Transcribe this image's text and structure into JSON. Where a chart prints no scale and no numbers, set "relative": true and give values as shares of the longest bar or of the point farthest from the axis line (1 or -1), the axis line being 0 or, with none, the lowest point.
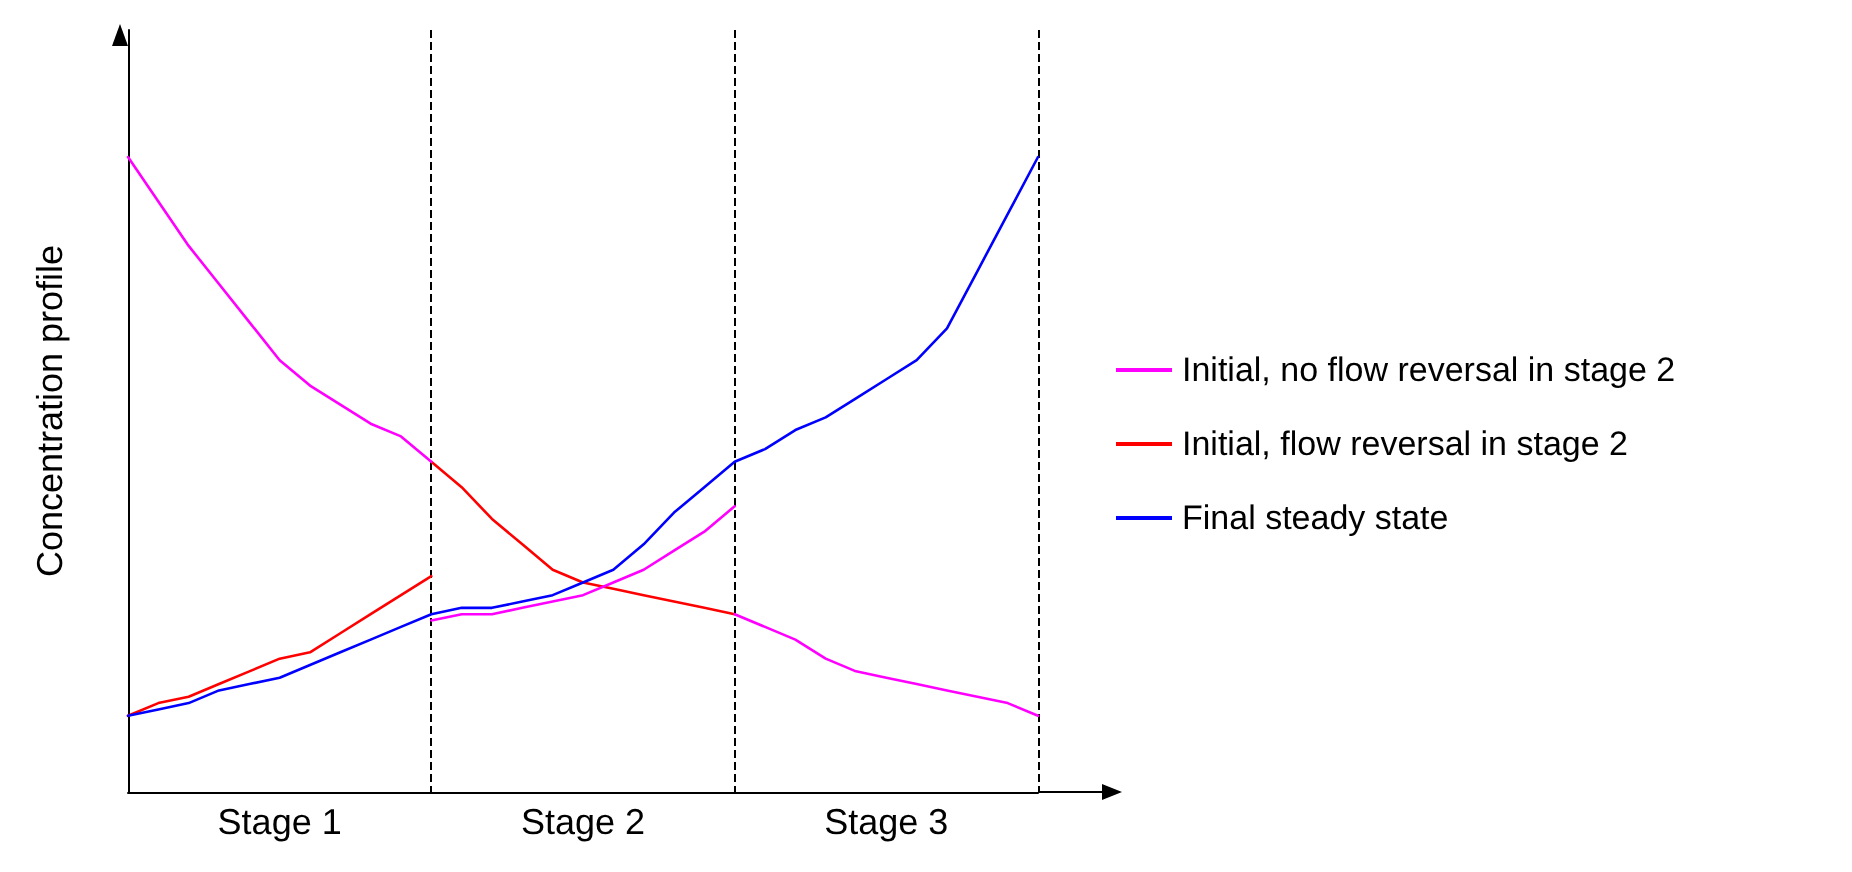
{
  "chart_data": {
    "type": "line",
    "relative": true,
    "ylabel": "Concentration profile",
    "categories": [
      null,
      null,
      null,
      null,
      null,
      "Stage 1",
      null,
      null,
      null,
      null,
      null,
      null,
      null,
      null,
      null,
      "Stage 2",
      null,
      null,
      null,
      null,
      null,
      null,
      null,
      null,
      null,
      "Stage 3",
      null,
      null,
      null,
      null,
      null
    ],
    "series": [
      {
        "name": "Initial, no flow reversal in stage 2",
        "color": "#ff00ff",
        "values": [
          1.0,
          0.93,
          0.86,
          0.8,
          0.74,
          0.68,
          0.64,
          0.61,
          0.58,
          0.56,
          0.52,
          null,
          null,
          null,
          null,
          null,
          null,
          null,
          null,
          null,
          null,
          null,
          null,
          null,
          null,
          null,
          null,
          null,
          null,
          null,
          null
        ]
      },
      {
        "color": "#ff00ff",
        "values": [
          null,
          null,
          null,
          null,
          null,
          null,
          null,
          null,
          null,
          null,
          0.27,
          0.28,
          0.28,
          0.29,
          0.3,
          0.31,
          0.33,
          0.35,
          0.38,
          0.41,
          0.45,
          null,
          null,
          null,
          null,
          null,
          null,
          null,
          null,
          null,
          null
        ]
      },
      {
        "color": "#ff00ff",
        "values": [
          null,
          null,
          null,
          null,
          null,
          null,
          null,
          null,
          null,
          null,
          null,
          null,
          null,
          null,
          null,
          null,
          null,
          null,
          null,
          null,
          0.28,
          0.26,
          0.24,
          0.21,
          0.19,
          0.18,
          0.17,
          0.16,
          0.15,
          0.14,
          0.12
        ]
      },
      {
        "name": "Initial, flow reversal in stage 2",
        "color": "#ff0000",
        "values": [
          null,
          null,
          null,
          null,
          null,
          null,
          null,
          null,
          null,
          null,
          0.52,
          0.48,
          0.43,
          0.39,
          0.35,
          0.33,
          0.32,
          0.31,
          0.3,
          0.29,
          0.28,
          null,
          null,
          null,
          null,
          null,
          null,
          null,
          null,
          null,
          null
        ]
      },
      {
        "color": "#ff0000",
        "values": [
          0.12,
          0.14,
          0.15,
          0.17,
          0.19,
          0.21,
          0.22,
          0.25,
          0.28,
          0.31,
          0.34,
          null,
          null,
          null,
          null,
          null,
          null,
          null,
          null,
          null,
          null,
          null,
          null,
          null,
          null,
          null,
          null,
          null,
          null,
          null,
          null
        ]
      },
      {
        "name": "Final steady state",
        "color": "#0000ff",
        "values": [
          0.12,
          0.13,
          0.14,
          0.16,
          0.17,
          0.18,
          0.2,
          0.22,
          0.24,
          0.26,
          0.28,
          0.29,
          0.29,
          0.3,
          0.31,
          0.33,
          0.35,
          0.39,
          0.44,
          0.48,
          0.52,
          0.54,
          0.57,
          0.59,
          0.62,
          0.65,
          0.68,
          0.73,
          0.82,
          0.91,
          1.0
        ]
      }
    ],
    "legend": "right",
    "grid": "x",
    "marker": "none",
    "line_style": "solid"
  }
}
